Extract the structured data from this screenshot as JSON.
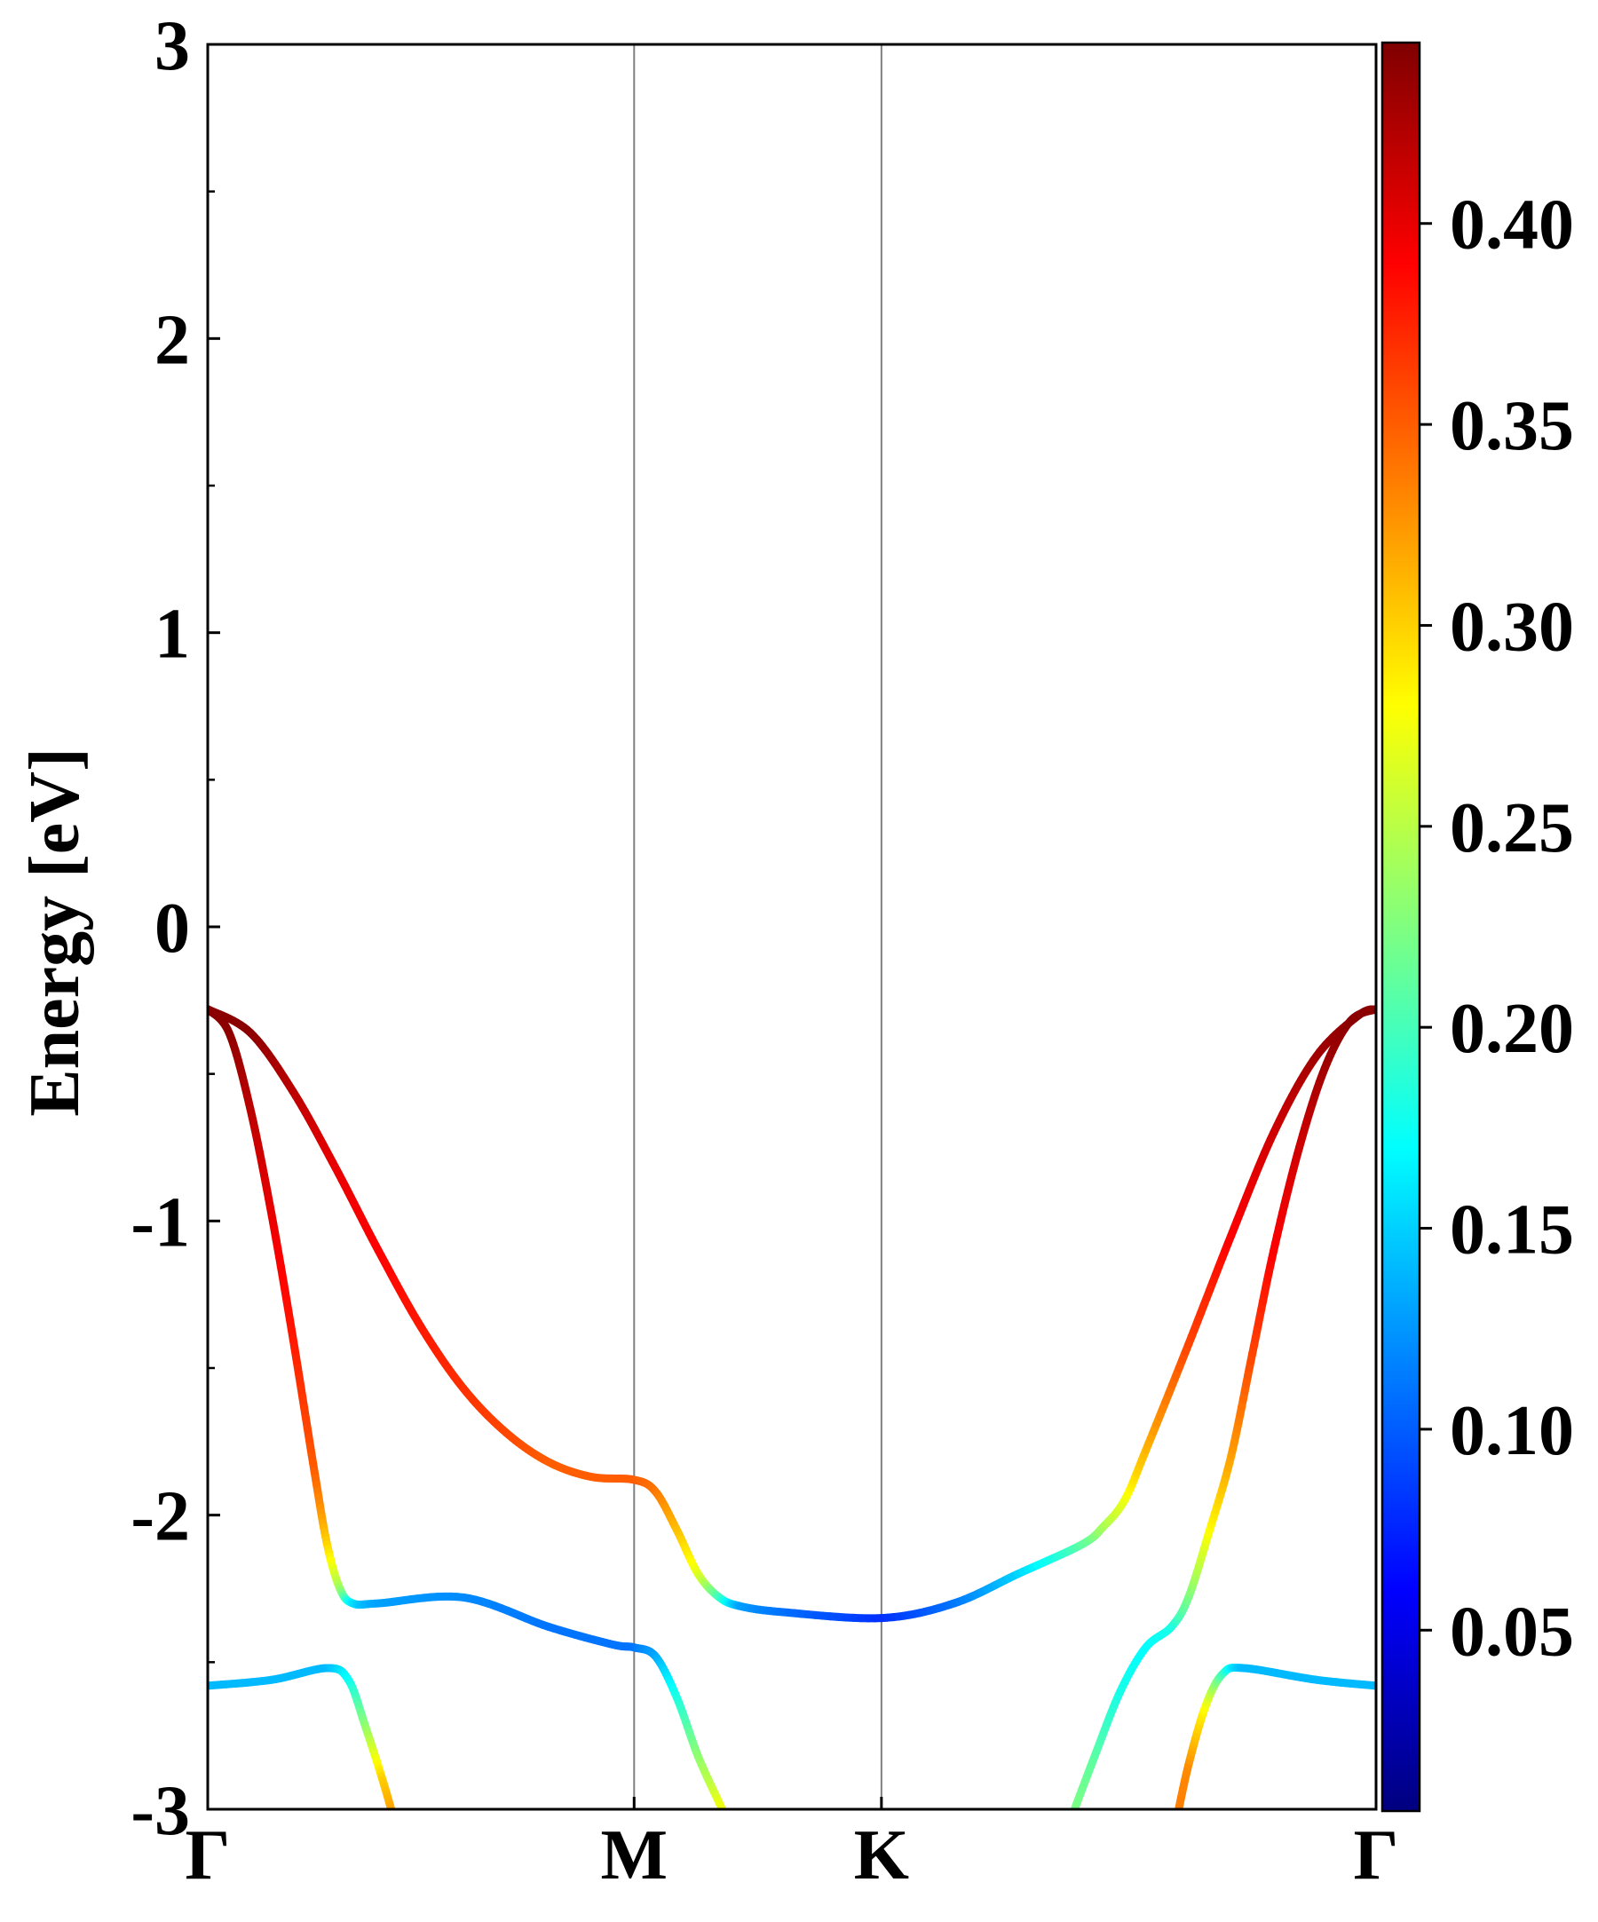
{
  "chart_data": {
    "type": "line",
    "title": "",
    "xlabel": "",
    "ylabel": "Energy [eV]",
    "ylim": [
      -3,
      3
    ],
    "yticks": [
      "3",
      "2",
      "1",
      "0",
      "-1",
      "-2",
      "-3"
    ],
    "x_ticks": [
      {
        "label": "Γ",
        "x": 0.0
      },
      {
        "label": "M",
        "x": 1.0
      },
      {
        "label": "K",
        "x": 1.58
      },
      {
        "label": "Γ",
        "x": 2.74
      }
    ],
    "xlim": [
      0,
      2.74
    ],
    "grid": false,
    "colormap": "jet",
    "colorbar": {
      "range": [
        0.005,
        0.445
      ],
      "ticks": [
        "0.40",
        "0.35",
        "0.30",
        "0.25",
        "0.20",
        "0.15",
        "0.10",
        "0.05"
      ],
      "tick_values": [
        0.4,
        0.35,
        0.3,
        0.25,
        0.2,
        0.15,
        0.1,
        0.05
      ]
    },
    "bands": [
      {
        "points": [
          [
            0.0,
            -0.28,
            0.44
          ],
          [
            0.1,
            -0.36,
            0.44
          ],
          [
            0.2,
            -0.56,
            0.42
          ],
          [
            0.3,
            -0.82,
            0.4
          ],
          [
            0.4,
            -1.1,
            0.39
          ],
          [
            0.5,
            -1.36,
            0.38
          ],
          [
            0.6,
            -1.57,
            0.37
          ],
          [
            0.7,
            -1.72,
            0.36
          ],
          [
            0.8,
            -1.82,
            0.35
          ],
          [
            0.9,
            -1.87,
            0.35
          ],
          [
            1.0,
            -1.88,
            0.35
          ],
          [
            1.05,
            -1.92,
            0.34
          ],
          [
            1.1,
            -2.05,
            0.31
          ],
          [
            1.15,
            -2.2,
            0.27
          ],
          [
            1.2,
            -2.28,
            0.2
          ],
          [
            1.25,
            -2.31,
            0.13
          ],
          [
            1.35,
            -2.33,
            0.11
          ],
          [
            1.58,
            -2.35,
            0.08
          ],
          [
            1.75,
            -2.3,
            0.11
          ],
          [
            1.9,
            -2.2,
            0.15
          ],
          [
            2.05,
            -2.1,
            0.21
          ],
          [
            2.1,
            -2.04,
            0.24
          ],
          [
            2.15,
            -1.95,
            0.27
          ],
          [
            2.2,
            -1.78,
            0.31
          ],
          [
            2.3,
            -1.42,
            0.36
          ],
          [
            2.4,
            -1.05,
            0.39
          ],
          [
            2.5,
            -0.7,
            0.41
          ],
          [
            2.6,
            -0.44,
            0.43
          ],
          [
            2.7,
            -0.3,
            0.44
          ],
          [
            2.74,
            -0.28,
            0.44
          ]
        ]
      },
      {
        "points": [
          [
            0.0,
            -0.28,
            0.44
          ],
          [
            0.05,
            -0.36,
            0.44
          ],
          [
            0.1,
            -0.62,
            0.42
          ],
          [
            0.15,
            -0.98,
            0.4
          ],
          [
            0.2,
            -1.4,
            0.38
          ],
          [
            0.25,
            -1.85,
            0.35
          ],
          [
            0.28,
            -2.1,
            0.3
          ],
          [
            0.31,
            -2.25,
            0.24
          ],
          [
            0.34,
            -2.3,
            0.16
          ],
          [
            0.4,
            -2.3,
            0.13
          ],
          [
            0.6,
            -2.28,
            0.12
          ],
          [
            0.8,
            -2.38,
            0.11
          ],
          [
            0.95,
            -2.44,
            0.11
          ],
          [
            1.0,
            -2.45,
            0.11
          ],
          [
            1.05,
            -2.48,
            0.13
          ],
          [
            1.1,
            -2.62,
            0.18
          ],
          [
            1.15,
            -2.82,
            0.23
          ],
          [
            1.2,
            -2.98,
            0.27
          ],
          [
            1.22,
            -3.05,
            0.28
          ]
        ]
      },
      {
        "points": [
          [
            2.02,
            -3.05,
            0.23
          ],
          [
            2.08,
            -2.82,
            0.21
          ],
          [
            2.14,
            -2.6,
            0.18
          ],
          [
            2.2,
            -2.45,
            0.17
          ],
          [
            2.26,
            -2.38,
            0.18
          ],
          [
            2.3,
            -2.28,
            0.22
          ],
          [
            2.35,
            -2.05,
            0.28
          ],
          [
            2.4,
            -1.8,
            0.32
          ],
          [
            2.45,
            -1.45,
            0.36
          ],
          [
            2.5,
            -1.1,
            0.39
          ],
          [
            2.56,
            -0.75,
            0.41
          ],
          [
            2.62,
            -0.48,
            0.43
          ],
          [
            2.68,
            -0.32,
            0.44
          ],
          [
            2.74,
            -0.28,
            0.44
          ]
        ]
      },
      {
        "points": [
          [
            0.0,
            -2.58,
            0.14
          ],
          [
            0.15,
            -2.56,
            0.14
          ],
          [
            0.28,
            -2.52,
            0.14
          ],
          [
            0.33,
            -2.56,
            0.17
          ],
          [
            0.37,
            -2.72,
            0.23
          ],
          [
            0.41,
            -2.9,
            0.3
          ],
          [
            0.44,
            -3.05,
            0.33
          ]
        ]
      },
      {
        "points": [
          [
            2.27,
            -3.05,
            0.34
          ],
          [
            2.3,
            -2.85,
            0.33
          ],
          [
            2.34,
            -2.65,
            0.28
          ],
          [
            2.38,
            -2.54,
            0.2
          ],
          [
            2.43,
            -2.52,
            0.14
          ],
          [
            2.6,
            -2.56,
            0.14
          ],
          [
            2.74,
            -2.58,
            0.14
          ]
        ]
      }
    ]
  }
}
